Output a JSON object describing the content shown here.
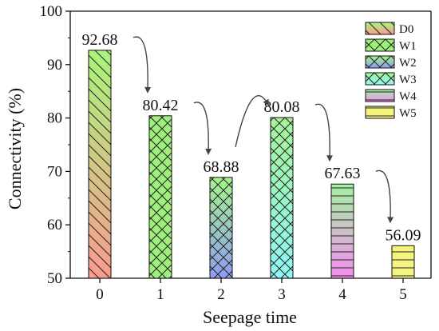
{
  "chart_data": {
    "type": "bar",
    "title": "",
    "xlabel": "Seepage time",
    "ylabel": "Connectivity (%)",
    "categories": [
      "0",
      "1",
      "2",
      "3",
      "4",
      "5"
    ],
    "values": [
      92.68,
      80.42,
      68.88,
      80.08,
      67.63,
      56.09
    ],
    "value_labels": [
      "92.68",
      "80.42",
      "68.88",
      "80.08",
      "67.63",
      "56.09"
    ],
    "ylim": [
      50,
      100
    ],
    "yticks": [
      "50",
      "60",
      "70",
      "80",
      "90",
      "100"
    ],
    "grid": false,
    "legend_position": "top-right",
    "legend": [
      "D0",
      "W1",
      "W2",
      "W3",
      "W4",
      "W5"
    ],
    "bars": [
      {
        "series": "D0",
        "pattern": "diagonal-backslash",
        "colors": [
          "#fa9a8f",
          "#a8f57a"
        ]
      },
      {
        "series": "W1",
        "pattern": "crosshatch",
        "colors": [
          "#9df07a",
          "#9df07a"
        ]
      },
      {
        "series": "W2",
        "pattern": "crosshatch",
        "colors": [
          "#8f9cf3",
          "#a4f48a"
        ]
      },
      {
        "series": "W3",
        "pattern": "crosshatch",
        "colors": [
          "#8ef6f6",
          "#a6f596"
        ]
      },
      {
        "series": "W4",
        "pattern": "horizontal",
        "colors": [
          "#f48ef0",
          "#a3f1a0"
        ]
      },
      {
        "series": "W5",
        "pattern": "horizontal",
        "colors": [
          "#f4f585",
          "#f6f37a"
        ]
      }
    ],
    "arrows": [
      {
        "from_category": 0,
        "to_category": 1,
        "direction": "down"
      },
      {
        "from_category": 1,
        "to_category": 2,
        "direction": "down"
      },
      {
        "from_category": 2,
        "to_category": 3,
        "direction": "up"
      },
      {
        "from_category": 3,
        "to_category": 4,
        "direction": "down"
      },
      {
        "from_category": 4,
        "to_category": 5,
        "direction": "down"
      }
    ]
  }
}
